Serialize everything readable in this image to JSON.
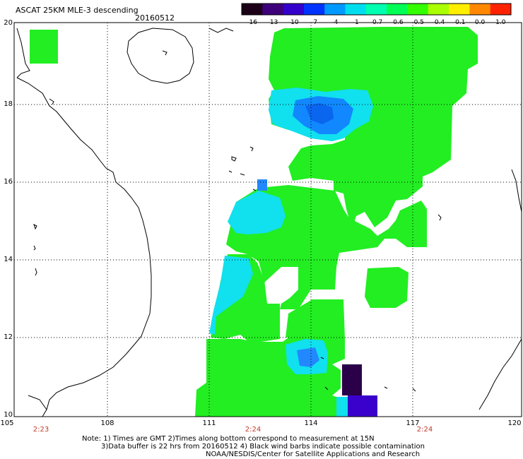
{
  "header": {
    "title": "ASCAT 25KM MLE-3 descending",
    "date": "20160512"
  },
  "colorbar": {
    "labels": [
      "-16",
      "-13",
      "-10",
      "-7",
      "-4",
      "-1",
      "-0.7",
      "-0.6",
      "-0.5",
      "-0.4",
      "-0.1",
      "0.0",
      "1.0"
    ],
    "colors": [
      "#1b0017",
      "#3d007a",
      "#3300cc",
      "#0033ff",
      "#0099ff",
      "#00ddee",
      "#00ffb0",
      "#00ff55",
      "#33ff00",
      "#aaff00",
      "#ffee00",
      "#ff8800",
      "#ff2200"
    ]
  },
  "axes": {
    "lat_labels": [
      "20",
      "18",
      "16",
      "14",
      "12",
      "10"
    ],
    "lon_labels": [
      "105",
      "108",
      "111",
      "114",
      "117",
      "120"
    ]
  },
  "times": [
    "2:23",
    "2:24",
    "2:24"
  ],
  "notes": {
    "line1": "Note: 1) Times are GMT 2)Times along bottom correspond to measurement at 15N",
    "line2": "3)Data buffer is 22 hrs from 20160512 4) Black wind barbs indicate possible contamination",
    "line3": "NOAA/NESDIS/Center for Satellite Applications and Research"
  }
}
